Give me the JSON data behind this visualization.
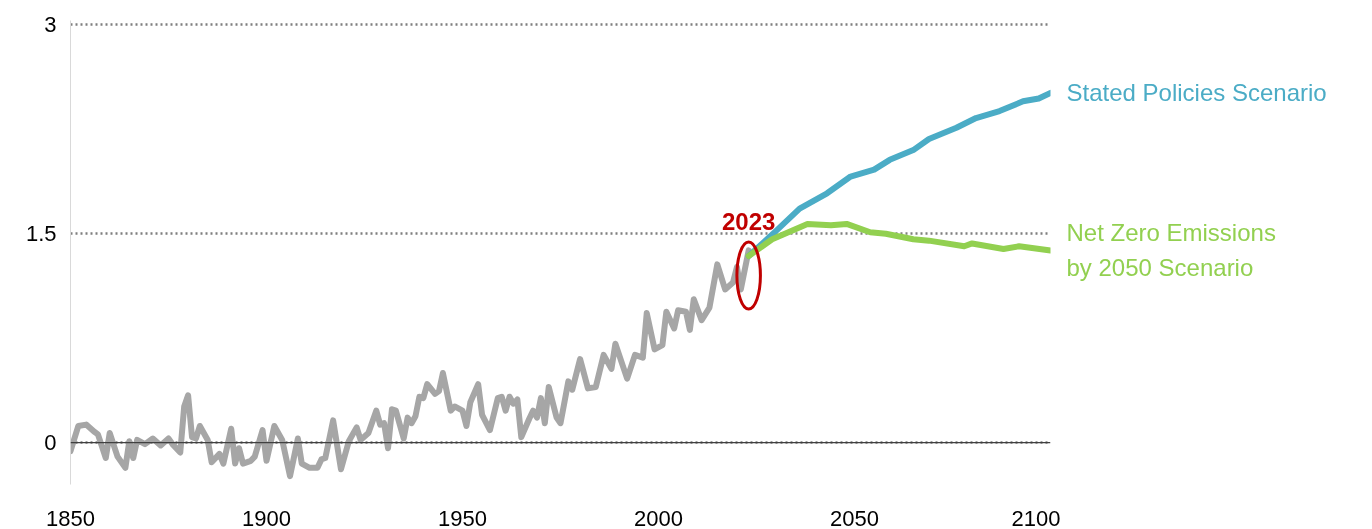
{
  "chart_data": {
    "type": "line",
    "xlim": [
      1850,
      2100
    ],
    "xticks": [
      1850,
      1900,
      1950,
      2000,
      2050,
      2100
    ],
    "ylim": [
      -0.3,
      3.03
    ],
    "yticks": [
      0,
      1.5,
      3
    ],
    "grid": "y",
    "line_style": "solid",
    "marker": "none",
    "annotations": [
      {
        "text": "2023",
        "x": 2023,
        "y": 1.38
      }
    ],
    "series": [
      {
        "color": "#a6a6a6",
        "x": [
          1850,
          1852,
          1854,
          1856,
          1857,
          1859,
          1860,
          1862,
          1864,
          1865,
          1866,
          1867,
          1869,
          1871,
          1873,
          1875,
          1876,
          1878,
          1879,
          1880,
          1881,
          1882,
          1883,
          1885,
          1886,
          1888,
          1889,
          1891,
          1892,
          1893,
          1894,
          1896,
          1897,
          1899,
          1900,
          1902,
          1904,
          1906,
          1908,
          1909,
          1911,
          1913,
          1914,
          1915,
          1917,
          1919,
          1921,
          1923,
          1924,
          1926,
          1928,
          1929,
          1930,
          1931,
          1932,
          1933,
          1935,
          1936,
          1937,
          1938,
          1939,
          1940,
          1941,
          1943,
          1944,
          1945,
          1947,
          1948,
          1950,
          1951,
          1952,
          1954,
          1955,
          1957,
          1959,
          1960,
          1961,
          1962,
          1963,
          1964,
          1965,
          1967,
          1968,
          1969,
          1970,
          1971,
          1972,
          1974,
          1975,
          1977,
          1978,
          1980,
          1982,
          1984,
          1986,
          1988,
          1989,
          1992,
          1994,
          1996,
          1997,
          1999,
          2001,
          2002,
          2004,
          2005,
          2007,
          2008,
          2009,
          2011,
          2013,
          2015,
          2017,
          2019,
          2020,
          2021,
          2023
        ],
        "values": [
          -0.06,
          0.12,
          0.13,
          0.08,
          0.06,
          -0.11,
          0.07,
          -0.1,
          -0.18,
          0.01,
          -0.11,
          0.02,
          -0.01,
          0.03,
          -0.02,
          0.03,
          -0.01,
          -0.07,
          0.26,
          0.34,
          0.04,
          0.03,
          0.12,
          0.02,
          -0.14,
          -0.08,
          -0.15,
          0.1,
          -0.15,
          -0.04,
          -0.15,
          -0.13,
          -0.1,
          0.09,
          -0.13,
          0.12,
          0.02,
          -0.24,
          0.03,
          -0.15,
          -0.18,
          -0.18,
          -0.12,
          -0.11,
          0.16,
          -0.19,
          0.01,
          0.11,
          0.02,
          0.07,
          0.23,
          0.13,
          0.14,
          -0.04,
          0.24,
          0.23,
          0.03,
          0.18,
          0.14,
          0.19,
          0.33,
          0.32,
          0.42,
          0.35,
          0.37,
          0.5,
          0.23,
          0.26,
          0.23,
          0.12,
          0.29,
          0.42,
          0.2,
          0.09,
          0.32,
          0.33,
          0.23,
          0.33,
          0.28,
          0.31,
          0.04,
          0.17,
          0.23,
          0.18,
          0.32,
          0.14,
          0.4,
          0.18,
          0.14,
          0.44,
          0.38,
          0.6,
          0.39,
          0.4,
          0.63,
          0.53,
          0.71,
          0.46,
          0.63,
          0.61,
          0.93,
          0.67,
          0.7,
          0.94,
          0.82,
          0.95,
          0.94,
          0.81,
          1.03,
          0.88,
          0.97,
          1.28,
          1.1,
          1.15,
          1.26,
          1.1,
          1.38
        ]
      },
      {
        "name": "Stated Policies Scenario",
        "color": "#4bacc6",
        "x": [
          2023,
          2030,
          2036,
          2043,
          2049,
          2055,
          2059,
          2065,
          2069,
          2076,
          2081,
          2087,
          2093,
          2097,
          2100
        ],
        "values": [
          1.34,
          1.52,
          1.68,
          1.79,
          1.91,
          1.96,
          2.03,
          2.1,
          2.18,
          2.26,
          2.33,
          2.38,
          2.45,
          2.47,
          2.51
        ]
      },
      {
        "name": "Net Zero Emissions\nby 2050 Scenario",
        "color": "#92d050",
        "x": [
          2023,
          2029,
          2038,
          2044,
          2048,
          2054,
          2058,
          2065,
          2069,
          2078,
          2080,
          2088,
          2092,
          2100
        ],
        "values": [
          1.34,
          1.46,
          1.57,
          1.56,
          1.57,
          1.51,
          1.5,
          1.46,
          1.45,
          1.41,
          1.43,
          1.39,
          1.41,
          1.38
        ]
      }
    ]
  }
}
